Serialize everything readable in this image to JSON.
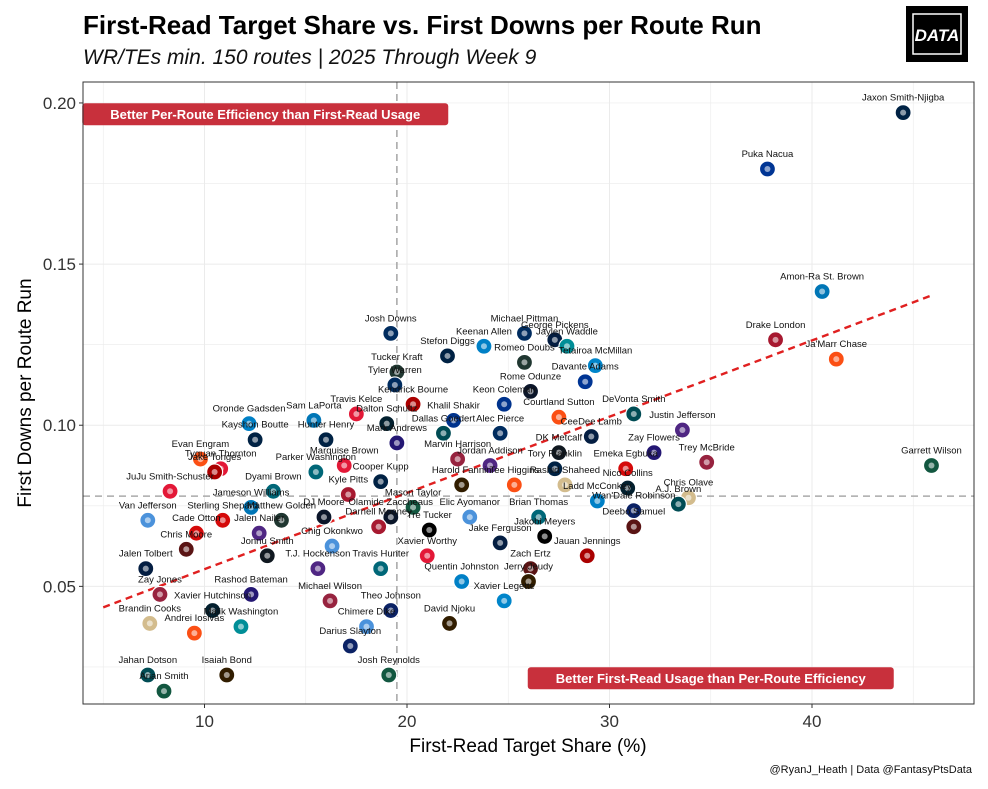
{
  "chart_data": {
    "type": "scatter",
    "title": "First-Read Target Share vs. First Downs per Route Run",
    "subtitle": "WR/TEs min. 150 routes | 2025 Through Week 9",
    "xlabel": "First-Read Target Share (%)",
    "ylabel": "First Downs per Route Run",
    "xlim": [
      4,
      48
    ],
    "ylim": [
      0.0135,
      0.2065
    ],
    "xticks": [
      10,
      20,
      30,
      40
    ],
    "yticks": [
      0.05,
      0.1,
      0.15,
      0.2
    ],
    "ytick_labels": [
      "0.05",
      "0.10",
      "0.15",
      "0.20"
    ],
    "grid": true,
    "vline_x": 19.5,
    "hline_y": 0.078,
    "trend_line": {
      "x": [
        5,
        46
      ],
      "y": [
        0.0435,
        0.1405
      ],
      "color": "#e02020"
    },
    "annotations": [
      {
        "text": "Better Per-Route Efficiency than First-Read Usage",
        "x": 13.0,
        "y": 0.1965
      },
      {
        "text": "Better First-Read Usage than Per-Route Efficiency",
        "x": 35.0,
        "y": 0.0215
      }
    ],
    "caption": "@RyanJ_Heath | Data @FantasyPtsData",
    "brand": {
      "text": "DATA",
      "bg": "#000000",
      "accent": "#d62d3a"
    },
    "annotation_color": "#c8303c",
    "points": [
      {
        "name": "Jaxon Smith-Njigba",
        "x": 44.5,
        "y": 0.197,
        "team": "SEA",
        "color": "#002244"
      },
      {
        "name": "Puka Nacua",
        "x": 37.8,
        "y": 0.1795,
        "team": "LAR",
        "color": "#003594"
      },
      {
        "name": "Amon-Ra St. Brown",
        "x": 40.5,
        "y": 0.1415,
        "team": "DET",
        "color": "#0076B6"
      },
      {
        "name": "Drake London",
        "x": 38.2,
        "y": 0.1265,
        "team": "ATL",
        "color": "#A71930"
      },
      {
        "name": "Ja'Marr Chase",
        "x": 41.2,
        "y": 0.1205,
        "team": "CIN",
        "color": "#FB4F14"
      },
      {
        "name": "Garrett Wilson",
        "x": 45.9,
        "y": 0.0875,
        "team": "NYJ",
        "color": "#125740"
      },
      {
        "name": "Josh Downs",
        "x": 19.2,
        "y": 0.1285,
        "team": "IND",
        "color": "#002C5F"
      },
      {
        "name": "Michael Pittman",
        "x": 25.8,
        "y": 0.1285,
        "team": "IND",
        "color": "#002C5F"
      },
      {
        "name": "George Pickens",
        "x": 27.3,
        "y": 0.1265,
        "team": "DAL",
        "color": "#041E42"
      },
      {
        "name": "Keenan Allen",
        "x": 23.8,
        "y": 0.1245,
        "team": "LAC",
        "color": "#0080C6"
      },
      {
        "name": "Jaylen Waddle",
        "x": 27.9,
        "y": 0.1245,
        "team": "MIA",
        "color": "#008E97"
      },
      {
        "name": "Stefon Diggs",
        "x": 22.0,
        "y": 0.1215,
        "team": "NE",
        "color": "#002244"
      },
      {
        "name": "Romeo Doubs",
        "x": 25.8,
        "y": 0.1195,
        "team": "GB",
        "color": "#203731"
      },
      {
        "name": "Tetairoa McMillan",
        "x": 29.3,
        "y": 0.1185,
        "team": "CAR",
        "color": "#0085CA"
      },
      {
        "name": "Tucker Kraft",
        "x": 19.5,
        "y": 0.1165,
        "team": "GB",
        "color": "#203731"
      },
      {
        "name": "Rome Odunze",
        "x": 26.1,
        "y": 0.1105,
        "team": "CHI",
        "color": "#0B162A"
      },
      {
        "name": "Davante Adams",
        "x": 28.8,
        "y": 0.1135,
        "team": "LAR",
        "color": "#003594"
      },
      {
        "name": "Tyler Warren",
        "x": 19.4,
        "y": 0.1125,
        "team": "IND",
        "color": "#002C5F"
      },
      {
        "name": "Kendrick Bourne",
        "x": 20.3,
        "y": 0.1065,
        "team": "SF",
        "color": "#AA0000"
      },
      {
        "name": "Keon Coleman",
        "x": 24.8,
        "y": 0.1065,
        "team": "BUF",
        "color": "#00338D"
      },
      {
        "name": "Travis Kelce",
        "x": 17.5,
        "y": 0.1035,
        "team": "KC",
        "color": "#E31837"
      },
      {
        "name": "DeVonta Smith",
        "x": 31.2,
        "y": 0.1035,
        "team": "PHI",
        "color": "#004C54"
      },
      {
        "name": "Courtland Sutton",
        "x": 27.5,
        "y": 0.1025,
        "team": "DEN",
        "color": "#FB4F14"
      },
      {
        "name": "Khalil Shakir",
        "x": 22.3,
        "y": 0.1015,
        "team": "BUF",
        "color": "#00338D"
      },
      {
        "name": "Sam LaPorta",
        "x": 15.4,
        "y": 0.1015,
        "team": "DET",
        "color": "#0076B6"
      },
      {
        "name": "Dalton Schultz",
        "x": 19.0,
        "y": 0.1005,
        "team": "HOU",
        "color": "#03202F"
      },
      {
        "name": "Oronde Gadsden",
        "x": 12.2,
        "y": 0.1005,
        "team": "LAC",
        "color": "#0080C6"
      },
      {
        "name": "Justin Jefferson",
        "x": 33.6,
        "y": 0.0985,
        "team": "MIN",
        "color": "#4F2683"
      },
      {
        "name": "Dallas Goedert",
        "x": 21.8,
        "y": 0.0975,
        "team": "PHI",
        "color": "#004C54"
      },
      {
        "name": "Alec Pierce",
        "x": 24.6,
        "y": 0.0975,
        "team": "IND",
        "color": "#002C5F"
      },
      {
        "name": "CeeDee Lamb",
        "x": 29.1,
        "y": 0.0965,
        "team": "DAL",
        "color": "#041E42"
      },
      {
        "name": "Hunter Henry",
        "x": 16.0,
        "y": 0.0955,
        "team": "NE",
        "color": "#002244"
      },
      {
        "name": "Mark Andrews",
        "x": 19.5,
        "y": 0.0945,
        "team": "BAL",
        "color": "#241773"
      },
      {
        "name": "Kayshon Boutte",
        "x": 12.5,
        "y": 0.0955,
        "team": "NE",
        "color": "#002244"
      },
      {
        "name": "DK Metcalf",
        "x": 27.5,
        "y": 0.0915,
        "team": "PIT",
        "color": "#101820"
      },
      {
        "name": "Zay Flowers",
        "x": 32.2,
        "y": 0.0915,
        "team": "BAL",
        "color": "#241773"
      },
      {
        "name": "Trey McBride",
        "x": 34.8,
        "y": 0.0885,
        "team": "ARI",
        "color": "#97233F"
      },
      {
        "name": "Marvin Harrison",
        "x": 22.5,
        "y": 0.0895,
        "team": "ARI",
        "color": "#97233F"
      },
      {
        "name": "Jordan Addison",
        "x": 24.1,
        "y": 0.0875,
        "team": "MIN",
        "color": "#4F2683"
      },
      {
        "name": "Marquise Brown",
        "x": 16.9,
        "y": 0.0875,
        "team": "KC",
        "color": "#E31837"
      },
      {
        "name": "Evan Engram",
        "x": 9.8,
        "y": 0.0895,
        "team": "DEN",
        "color": "#FB4F14"
      },
      {
        "name": "Tyquan Thornton",
        "x": 10.8,
        "y": 0.0865,
        "team": "KC",
        "color": "#E31837"
      },
      {
        "name": "Emeka Egbuka",
        "x": 30.8,
        "y": 0.0865,
        "team": "TB",
        "color": "#D50A0A"
      },
      {
        "name": "Tory Franklin",
        "x": 27.3,
        "y": 0.0865,
        "team": "NE",
        "color": "#002244"
      },
      {
        "name": "Jake Tonges",
        "x": 10.5,
        "y": 0.0855,
        "team": "SF",
        "color": "#AA0000"
      },
      {
        "name": "Parker Washington",
        "x": 15.5,
        "y": 0.0855,
        "team": "JAX",
        "color": "#006778"
      },
      {
        "name": "Cooper Kupp",
        "x": 18.7,
        "y": 0.0825,
        "team": "SEA",
        "color": "#002244"
      },
      {
        "name": "Harold Fannin",
        "x": 22.7,
        "y": 0.0815,
        "team": "CLE",
        "color": "#311D00"
      },
      {
        "name": "Tee Higgins",
        "x": 25.3,
        "y": 0.0815,
        "team": "CIN",
        "color": "#FB4F14"
      },
      {
        "name": "Rashid Shaheed",
        "x": 27.8,
        "y": 0.0815,
        "team": "NO",
        "color": "#D3BC8D"
      },
      {
        "name": "Nico Collins",
        "x": 30.9,
        "y": 0.0805,
        "team": "HOU",
        "color": "#03202F"
      },
      {
        "name": "Chris Olave",
        "x": 33.9,
        "y": 0.0775,
        "team": "NO",
        "color": "#D3BC8D"
      },
      {
        "name": "Dyami Brown",
        "x": 13.4,
        "y": 0.0795,
        "team": "JAX",
        "color": "#006778"
      },
      {
        "name": "JuJu Smith-Schuster",
        "x": 8.3,
        "y": 0.0795,
        "team": "KC",
        "color": "#E31837"
      },
      {
        "name": "Kyle Pitts",
        "x": 17.1,
        "y": 0.0785,
        "team": "ATL",
        "color": "#A71930"
      },
      {
        "name": "Ladd McConkey",
        "x": 29.4,
        "y": 0.0765,
        "team": "LAC",
        "color": "#0080C6"
      },
      {
        "name": "A.J. Brown",
        "x": 33.4,
        "y": 0.0755,
        "team": "PHI",
        "color": "#004C54"
      },
      {
        "name": "Wan'Dale Robinson",
        "x": 31.2,
        "y": 0.0735,
        "team": "NYG",
        "color": "#0B2265"
      },
      {
        "name": "Mason Taylor",
        "x": 20.3,
        "y": 0.0745,
        "team": "NYJ",
        "color": "#125740"
      },
      {
        "name": "Jameson Williams",
        "x": 12.3,
        "y": 0.0745,
        "team": "DET",
        "color": "#0076B6"
      },
      {
        "name": "Van Jefferson",
        "x": 7.2,
        "y": 0.0705,
        "team": "TEN",
        "color": "#4B92DB"
      },
      {
        "name": "Elic Ayomanor",
        "x": 23.1,
        "y": 0.0715,
        "team": "TEN",
        "color": "#4B92DB"
      },
      {
        "name": "Brian Thomas",
        "x": 26.5,
        "y": 0.0715,
        "team": "JAX",
        "color": "#006778"
      },
      {
        "name": "Deebo Samuel",
        "x": 31.2,
        "y": 0.0685,
        "team": "WAS",
        "color": "#5A1414"
      },
      {
        "name": "DJ Moore",
        "x": 15.9,
        "y": 0.0715,
        "team": "CHI",
        "color": "#0B162A"
      },
      {
        "name": "Olamide Zaccheaus",
        "x": 19.2,
        "y": 0.0715,
        "team": "CHI",
        "color": "#0B162A"
      },
      {
        "name": "Matthew Golden",
        "x": 13.8,
        "y": 0.0705,
        "team": "GB",
        "color": "#203731"
      },
      {
        "name": "Sterling Shepard",
        "x": 10.9,
        "y": 0.0705,
        "team": "TB",
        "color": "#D50A0A"
      },
      {
        "name": "Darnell Mooney",
        "x": 18.6,
        "y": 0.0685,
        "team": "ATL",
        "color": "#A71930"
      },
      {
        "name": "Tre Tucker",
        "x": 21.1,
        "y": 0.0675,
        "team": "LV",
        "color": "#000000"
      },
      {
        "name": "Cade Otton",
        "x": 9.6,
        "y": 0.0665,
        "team": "TB",
        "color": "#D50A0A"
      },
      {
        "name": "Jalen Nailer",
        "x": 12.7,
        "y": 0.0665,
        "team": "MIN",
        "color": "#4F2683"
      },
      {
        "name": "Jakobi Meyers",
        "x": 26.8,
        "y": 0.0655,
        "team": "LV",
        "color": "#000000"
      },
      {
        "name": "Jake Ferguson",
        "x": 24.6,
        "y": 0.0635,
        "team": "DAL",
        "color": "#041E42"
      },
      {
        "name": "Chig Okonkwo",
        "x": 16.3,
        "y": 0.0625,
        "team": "TEN",
        "color": "#4B92DB"
      },
      {
        "name": "Xavier Worthy",
        "x": 21.0,
        "y": 0.0595,
        "team": "KC",
        "color": "#E31837"
      },
      {
        "name": "Jauan Jennings",
        "x": 28.9,
        "y": 0.0595,
        "team": "SF",
        "color": "#AA0000"
      },
      {
        "name": "Chris Moore",
        "x": 9.1,
        "y": 0.0615,
        "team": "WAS",
        "color": "#5A1414"
      },
      {
        "name": "Jonnu Smith",
        "x": 13.1,
        "y": 0.0595,
        "team": "PIT",
        "color": "#101820"
      },
      {
        "name": "Zach Ertz",
        "x": 26.1,
        "y": 0.0555,
        "team": "WAS",
        "color": "#5A1414"
      },
      {
        "name": "T.J. Hockenson",
        "x": 15.6,
        "y": 0.0555,
        "team": "MIN",
        "color": "#4F2683"
      },
      {
        "name": "Travis Hunter",
        "x": 18.7,
        "y": 0.0555,
        "team": "JAX",
        "color": "#006778"
      },
      {
        "name": "Jerry Jeudy",
        "x": 26.0,
        "y": 0.0515,
        "team": "CLE",
        "color": "#311D00"
      },
      {
        "name": "Quentin Johnston",
        "x": 22.7,
        "y": 0.0515,
        "team": "LAC",
        "color": "#0080C6"
      },
      {
        "name": "Jalen Tolbert",
        "x": 7.1,
        "y": 0.0555,
        "team": "DAL",
        "color": "#041E42"
      },
      {
        "name": "Zay Jones",
        "x": 7.8,
        "y": 0.0475,
        "team": "ARI",
        "color": "#97233F"
      },
      {
        "name": "Rashod Bateman",
        "x": 12.3,
        "y": 0.0475,
        "team": "BAL",
        "color": "#241773"
      },
      {
        "name": "Michael Wilson",
        "x": 16.2,
        "y": 0.0455,
        "team": "ARI",
        "color": "#97233F"
      },
      {
        "name": "Xavier Legette",
        "x": 24.8,
        "y": 0.0455,
        "team": "CAR",
        "color": "#0085CA"
      },
      {
        "name": "Theo Johnson",
        "x": 19.2,
        "y": 0.0425,
        "team": "NYG",
        "color": "#0B2265"
      },
      {
        "name": "Xavier Hutchinson",
        "x": 10.4,
        "y": 0.0425,
        "team": "HOU",
        "color": "#03202F"
      },
      {
        "name": "David Njoku",
        "x": 22.1,
        "y": 0.0385,
        "team": "CLE",
        "color": "#311D00"
      },
      {
        "name": "Brandin Cooks",
        "x": 7.3,
        "y": 0.0385,
        "team": "NO",
        "color": "#D3BC8D"
      },
      {
        "name": "Chimere Dike",
        "x": 18.0,
        "y": 0.0375,
        "team": "TEN",
        "color": "#4B92DB"
      },
      {
        "name": "Malik Washington",
        "x": 11.8,
        "y": 0.0375,
        "team": "MIA",
        "color": "#008E97"
      },
      {
        "name": "Andrei Iosivas",
        "x": 9.5,
        "y": 0.0355,
        "team": "CIN",
        "color": "#FB4F14"
      },
      {
        "name": "Darius Slayton",
        "x": 17.2,
        "y": 0.0315,
        "team": "NYG",
        "color": "#0B2265"
      },
      {
        "name": "Jahan Dotson",
        "x": 7.2,
        "y": 0.0225,
        "team": "PHI",
        "color": "#004C54"
      },
      {
        "name": "Isaiah Bond",
        "x": 11.1,
        "y": 0.0225,
        "team": "CLE",
        "color": "#311D00"
      },
      {
        "name": "Josh Reynolds",
        "x": 19.1,
        "y": 0.0225,
        "team": "NYJ",
        "color": "#125740"
      },
      {
        "name": "Arian Smith",
        "x": 8.0,
        "y": 0.0175,
        "team": "NYJ",
        "color": "#125740"
      }
    ]
  }
}
